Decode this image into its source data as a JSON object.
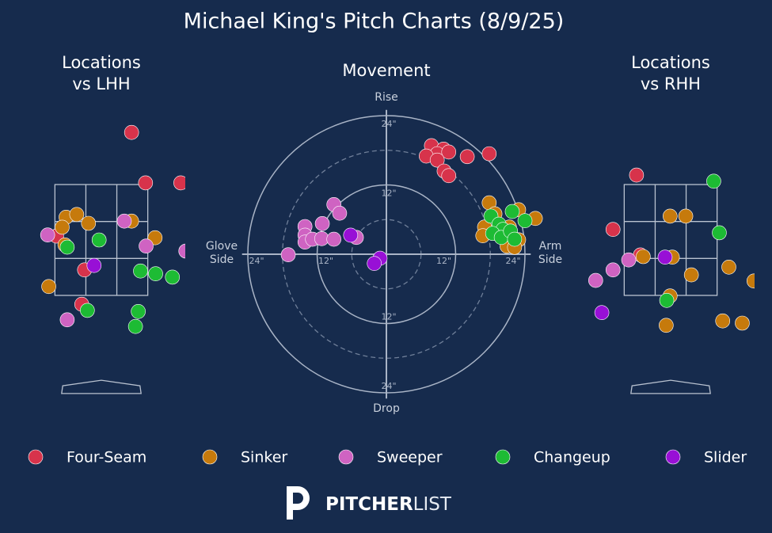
{
  "title": "Michael King's Pitch Charts (8/9/25)",
  "logo": {
    "bold": "PITCHER",
    "light": "LIST"
  },
  "chart_data": [
    {
      "type": "scatter",
      "title": "Locations\nvs LHH",
      "xlim": [
        -1.5,
        1.5
      ],
      "ylim": [
        -0.5,
        4.7
      ],
      "zone": {
        "x": [
          -0.83,
          0.83
        ],
        "y": [
          1.5,
          3.5
        ]
      },
      "series": [
        {
          "name": "Four-Seam",
          "color": "#d7334b",
          "x": [
            0.54,
            0.79,
            1.42,
            -0.8,
            -0.3,
            -0.35
          ],
          "y": [
            4.44,
            3.53,
            3.53,
            2.57,
            1.96,
            1.34
          ]
        },
        {
          "name": "Sinker",
          "color": "#c67a0c",
          "x": [
            -0.63,
            -0.44,
            -0.23,
            -0.7,
            -0.65,
            0.54,
            0.96,
            -0.94
          ],
          "y": [
            2.91,
            2.96,
            2.8,
            2.73,
            2.41,
            2.84,
            2.54,
            1.66
          ]
        },
        {
          "name": "Sweeper",
          "color": "#cf63c2",
          "x": [
            -0.96,
            0.41,
            0.8,
            1.51,
            -0.61
          ],
          "y": [
            2.59,
            2.84,
            2.39,
            2.3,
            1.06
          ]
        },
        {
          "name": "Changeup",
          "color": "#1dbb34",
          "x": [
            -0.61,
            -0.04,
            0.7,
            0.97,
            1.27,
            -0.25,
            0.66,
            0.61
          ],
          "y": [
            2.37,
            2.5,
            1.94,
            1.89,
            1.83,
            1.23,
            1.21,
            0.94
          ]
        },
        {
          "name": "Slider",
          "color": "#9810d6",
          "x": [
            -0.13
          ],
          "y": [
            2.04
          ]
        }
      ]
    },
    {
      "type": "movement",
      "title": "Movement",
      "xlim": [
        -25,
        25
      ],
      "ylim": [
        -25,
        25
      ],
      "y_label_top": "Rise",
      "y_label_bottom": "Drop",
      "x_label_left": "Glove\nSide",
      "x_label_right": "Arm\nSide",
      "rticks": [
        {
          "value": 12,
          "label": "12\""
        },
        {
          "value": 24,
          "label": "24\""
        }
      ],
      "rgrid_minor": [
        6,
        18
      ],
      "series": [
        {
          "name": "Four-Seam",
          "color": "#d7334b",
          "x": [
            7.8,
            9.9,
            8.8,
            6.9,
            10.8,
            8.8,
            10.0,
            10.8,
            14.0,
            17.8
          ],
          "y": [
            18.8,
            18.2,
            17.4,
            17.0,
            17.7,
            16.3,
            14.4,
            13.6,
            16.9,
            17.4
          ]
        },
        {
          "name": "Sinker",
          "color": "#c67a0c",
          "x": [
            17.8,
            18.8,
            22.9,
            25.8,
            17.0,
            16.7,
            21.3,
            22.9,
            20.9,
            22.2
          ],
          "y": [
            8.9,
            7.0,
            7.7,
            6.2,
            4.7,
            3.2,
            4.7,
            2.5,
            1.4,
            1.2
          ]
        },
        {
          "name": "Sweeper",
          "color": "#cf63c2",
          "x": [
            -9.1,
            -8.1,
            -11.1,
            -14.1,
            -14.1,
            -14.1,
            -12.8,
            -11.2,
            -9.1,
            -5.2,
            -17.0
          ],
          "y": [
            8.6,
            7.1,
            5.3,
            4.8,
            3.3,
            2.1,
            2.6,
            2.7,
            2.6,
            2.9,
            -0.1
          ]
        },
        {
          "name": "Changeup",
          "color": "#1dbb34",
          "x": [
            18.1,
            21.8,
            24.0,
            19.5,
            20.2,
            18.4,
            19.9,
            21.5,
            22.2
          ],
          "y": [
            6.6,
            7.4,
            5.8,
            5.2,
            4.3,
            3.6,
            2.9,
            4.0,
            2.6
          ]
        },
        {
          "name": "Slider",
          "color": "#9810d6",
          "x": [
            -6.2,
            -1.1,
            -2.1
          ],
          "y": [
            3.3,
            -0.7,
            -1.6
          ]
        }
      ]
    },
    {
      "type": "scatter",
      "title": "Locations\nvs RHH",
      "xlim": [
        -1.5,
        1.5
      ],
      "ylim": [
        -0.5,
        4.7
      ],
      "zone": {
        "x": [
          -0.83,
          0.83
        ],
        "y": [
          1.5,
          3.5
        ]
      },
      "series": [
        {
          "name": "Four-Seam",
          "color": "#d7334b",
          "x": [
            -0.61,
            -1.03,
            -0.54
          ],
          "y": [
            3.67,
            2.69,
            2.23
          ]
        },
        {
          "name": "Sinker",
          "color": "#c67a0c",
          "x": [
            -0.01,
            0.27,
            -0.49,
            0.03,
            0.37,
            1.04,
            1.49,
            -0.01,
            -0.08,
            0.93,
            1.28
          ],
          "y": [
            2.93,
            2.93,
            2.2,
            2.19,
            1.87,
            2.01,
            1.76,
            1.49,
            0.96,
            1.04,
            1.0
          ]
        },
        {
          "name": "Sweeper",
          "color": "#cf63c2",
          "x": [
            -1.34,
            -1.03,
            -0.75
          ],
          "y": [
            1.77,
            1.96,
            2.14
          ]
        },
        {
          "name": "Changeup",
          "color": "#1dbb34",
          "x": [
            0.77,
            0.87,
            -0.07
          ],
          "y": [
            3.56,
            2.63,
            1.41
          ]
        },
        {
          "name": "Slider",
          "color": "#9810d6",
          "x": [
            -0.1,
            -1.23
          ],
          "y": [
            2.19,
            1.19
          ]
        }
      ]
    }
  ]
}
